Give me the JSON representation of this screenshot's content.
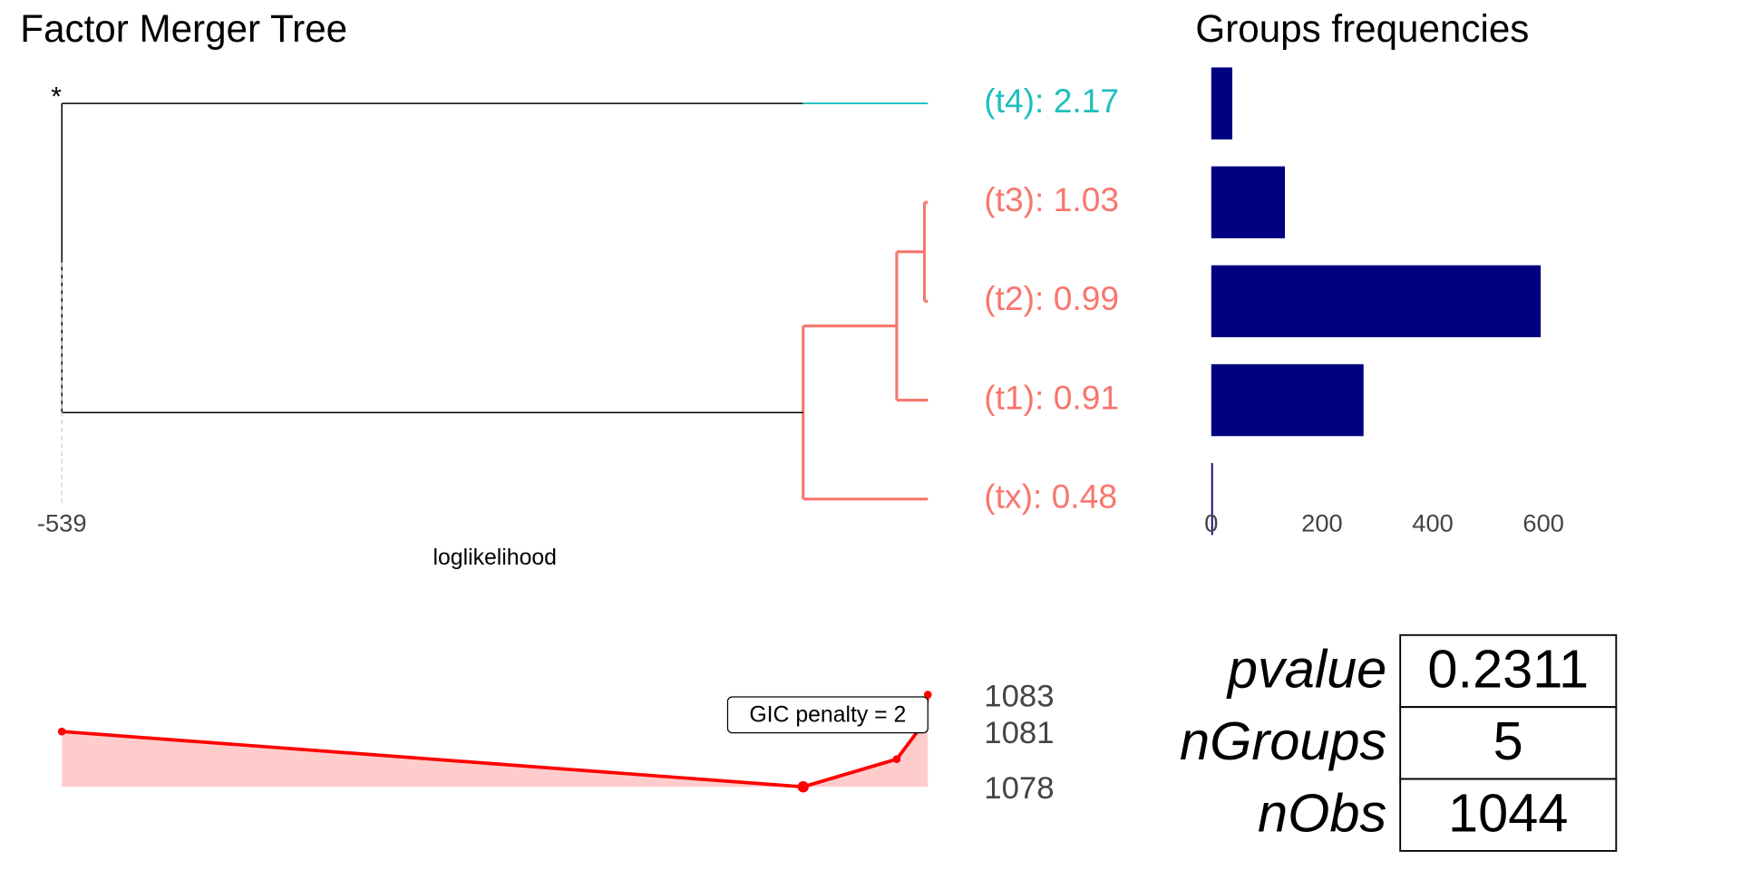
{
  "chart_data": [
    {
      "type": "dendrogram",
      "title": "Factor Merger Tree",
      "x_label": "loglikelihood",
      "xlim": [
        -539,
        -536.5
      ],
      "xticks": [
        -539
      ],
      "root_label": "*",
      "leaves": [
        {
          "label": "(t4): 2.17",
          "color": "#1fbfbf"
        },
        {
          "label": "(t3): 1.03",
          "color": "#f8766d"
        },
        {
          "label": "(t2): 0.99",
          "color": "#f8766d"
        },
        {
          "label": "(t1): 0.91",
          "color": "#f8766d"
        },
        {
          "label": "(tx): 0.48",
          "color": "#f8766d"
        }
      ],
      "merges": [
        {
          "children": [
            1,
            2
          ],
          "loglikelihood": -536.51
        },
        {
          "children": [
            5,
            3
          ],
          "loglikelihood": -536.59
        },
        {
          "children": [
            6,
            4
          ],
          "loglikelihood": -536.86
        },
        {
          "children": [
            0,
            7
          ],
          "loglikelihood": -539
        }
      ]
    },
    {
      "type": "hbar",
      "title": "Groups frequencies",
      "values": [
        38,
        133,
        595,
        275,
        3
      ],
      "color": "#000080",
      "xlim": [
        0,
        650
      ],
      "xticks": [
        0,
        200,
        400,
        600
      ]
    },
    {
      "type": "gic",
      "x": [
        -539,
        -536.86,
        -536.59,
        -536.51,
        -536.5
      ],
      "values": [
        1081,
        1078,
        1079.5,
        1081.5,
        1083
      ],
      "color": "#ff0000",
      "fill": "#ffcccc",
      "ylim": [
        1078,
        1083
      ],
      "yticks": [
        1078,
        1081,
        1083
      ],
      "annotation": "GIC penalty = 2"
    },
    {
      "type": "table",
      "rows": [
        [
          "pvalue",
          0.2311
        ],
        [
          "nGroups",
          5
        ],
        [
          "nObs",
          1044
        ]
      ]
    }
  ]
}
